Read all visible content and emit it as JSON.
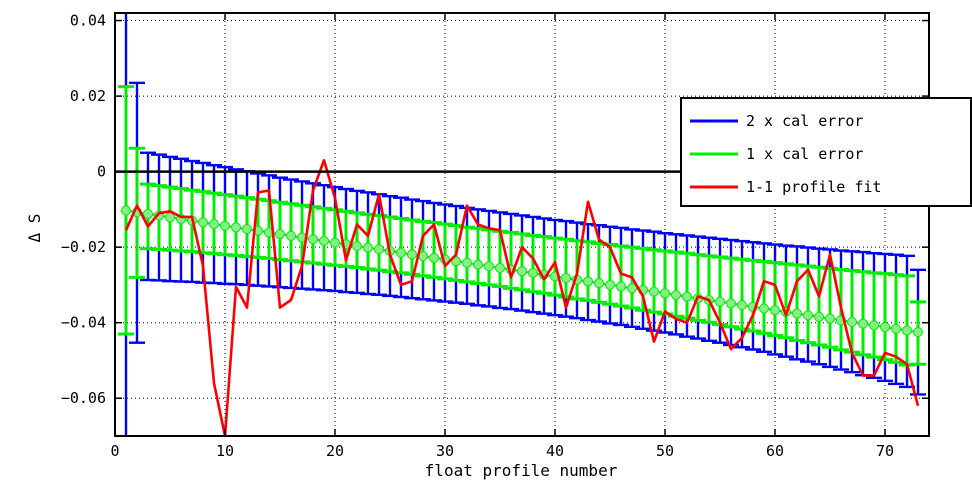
{
  "chart_data": {
    "type": "line",
    "xlabel": "float profile number",
    "ylabel": "Δ S",
    "xlim": [
      0,
      74
    ],
    "ylim": [
      -0.07,
      0.042
    ],
    "x_ticks": [
      0,
      10,
      20,
      30,
      40,
      50,
      60,
      70
    ],
    "y_ticks": [
      {
        "value": 0.04,
        "label": "0.04"
      },
      {
        "value": 0.02,
        "label": "0.02"
      },
      {
        "value": 0,
        "label": "0"
      },
      {
        "value": -0.02,
        "label": "−0.02"
      },
      {
        "value": -0.04,
        "label": "−0.04"
      },
      {
        "value": -0.06,
        "label": "−0.06"
      }
    ],
    "grid": true,
    "reference_line_y": 0,
    "legend_position": "top-right",
    "legend": [
      {
        "label": "2 x cal error",
        "color": "#0000ff"
      },
      {
        "label": "1 x cal error",
        "color": "#00ee00"
      },
      {
        "label": "1-1 profile fit",
        "color": "#ff0000"
      }
    ],
    "colors": {
      "blue": "#0000ff",
      "green": "#00ee00",
      "red": "#ff0000",
      "marker": "#88ee88"
    },
    "error_bars_2x": {
      "name": "2 x cal error",
      "x": [
        1,
        2,
        3,
        4,
        5,
        6,
        7,
        8,
        9,
        10,
        11,
        12,
        13,
        14,
        15,
        16,
        17,
        18,
        19,
        20,
        21,
        22,
        23,
        24,
        25,
        26,
        27,
        28,
        29,
        30,
        31,
        32,
        33,
        34,
        35,
        36,
        37,
        38,
        39,
        40,
        41,
        42,
        43,
        44,
        45,
        46,
        47,
        48,
        49,
        50,
        51,
        52,
        53,
        54,
        55,
        56,
        57,
        58,
        59,
        60,
        61,
        62,
        63,
        64,
        65,
        66,
        67,
        68,
        69,
        70,
        71,
        72,
        73
      ],
      "lower": [
        -0.0744,
        -0.0453,
        -0.0287,
        -0.0288,
        -0.029,
        -0.0291,
        -0.0292,
        -0.0294,
        -0.0295,
        -0.0297,
        -0.0298,
        -0.03,
        -0.0302,
        -0.0304,
        -0.0306,
        -0.0308,
        -0.031,
        -0.0312,
        -0.0314,
        -0.0316,
        -0.0319,
        -0.0321,
        -0.0324,
        -0.0326,
        -0.0329,
        -0.0332,
        -0.0335,
        -0.0338,
        -0.0341,
        -0.0344,
        -0.0347,
        -0.035,
        -0.0354,
        -0.0357,
        -0.0361,
        -0.0364,
        -0.0368,
        -0.0372,
        -0.0376,
        -0.038,
        -0.0384,
        -0.0388,
        -0.0393,
        -0.0397,
        -0.0402,
        -0.0406,
        -0.0411,
        -0.0416,
        -0.0421,
        -0.0426,
        -0.0431,
        -0.0437,
        -0.0442,
        -0.0448,
        -0.0453,
        -0.0459,
        -0.0465,
        -0.0471,
        -0.0477,
        -0.0484,
        -0.049,
        -0.0497,
        -0.0503,
        -0.051,
        -0.0517,
        -0.0524,
        -0.0531,
        -0.0539,
        -0.0546,
        -0.0554,
        -0.0562,
        -0.057,
        -0.059
      ],
      "upper": [
        0.054,
        0.0235,
        0.005,
        0.0045,
        0.0039,
        0.0034,
        0.0028,
        0.0023,
        0.0017,
        0.0012,
        0.0006,
        0.0001,
        -0.0005,
        -0.001,
        -0.0016,
        -0.0021,
        -0.0026,
        -0.0031,
        -0.0036,
        -0.0041,
        -0.0046,
        -0.0051,
        -0.0055,
        -0.006,
        -0.0065,
        -0.0069,
        -0.0074,
        -0.0078,
        -0.0083,
        -0.0087,
        -0.0091,
        -0.0096,
        -0.01,
        -0.0104,
        -0.0108,
        -0.0112,
        -0.0116,
        -0.012,
        -0.0124,
        -0.0128,
        -0.0131,
        -0.0135,
        -0.0139,
        -0.0142,
        -0.0146,
        -0.0149,
        -0.0153,
        -0.0156,
        -0.0159,
        -0.0163,
        -0.0166,
        -0.0169,
        -0.0172,
        -0.0175,
        -0.0178,
        -0.0181,
        -0.0184,
        -0.0187,
        -0.019,
        -0.0193,
        -0.0196,
        -0.0198,
        -0.0201,
        -0.0204,
        -0.0206,
        -0.0209,
        -0.0211,
        -0.0213,
        -0.0216,
        -0.0218,
        -0.022,
        -0.0223,
        -0.026
      ]
    },
    "error_bars_1x": {
      "name": "1 x cal error",
      "x": [
        1,
        2,
        3,
        4,
        5,
        6,
        7,
        8,
        9,
        10,
        11,
        12,
        13,
        14,
        15,
        16,
        17,
        18,
        19,
        20,
        21,
        22,
        23,
        24,
        25,
        26,
        27,
        28,
        29,
        30,
        31,
        32,
        33,
        34,
        35,
        36,
        37,
        38,
        39,
        40,
        41,
        42,
        43,
        44,
        45,
        46,
        47,
        48,
        49,
        50,
        51,
        52,
        53,
        54,
        55,
        56,
        57,
        58,
        59,
        60,
        61,
        62,
        63,
        64,
        65,
        66,
        67,
        68,
        69,
        70,
        71,
        72,
        73
      ],
      "lower": [
        -0.043,
        -0.028,
        -0.0204,
        -0.0206,
        -0.0208,
        -0.021,
        -0.0212,
        -0.0215,
        -0.0217,
        -0.022,
        -0.0222,
        -0.0225,
        -0.0227,
        -0.023,
        -0.0233,
        -0.0236,
        -0.0239,
        -0.0242,
        -0.0245,
        -0.0248,
        -0.0251,
        -0.0254,
        -0.0258,
        -0.0261,
        -0.0265,
        -0.0268,
        -0.0272,
        -0.0276,
        -0.028,
        -0.0284,
        -0.0288,
        -0.0292,
        -0.0296,
        -0.03,
        -0.0304,
        -0.0309,
        -0.0313,
        -0.0318,
        -0.0322,
        -0.0327,
        -0.0332,
        -0.0337,
        -0.0341,
        -0.0346,
        -0.0351,
        -0.0356,
        -0.0361,
        -0.0367,
        -0.0372,
        -0.0377,
        -0.0383,
        -0.0388,
        -0.0394,
        -0.0399,
        -0.0405,
        -0.0411,
        -0.0417,
        -0.0422,
        -0.0428,
        -0.0434,
        -0.044,
        -0.0447,
        -0.0453,
        -0.0459,
        -0.0465,
        -0.0472,
        -0.0478,
        -0.0485,
        -0.0491,
        -0.0498,
        -0.0505,
        -0.0512,
        -0.051
      ],
      "upper": [
        0.0225,
        0.0062,
        -0.0033,
        -0.0037,
        -0.0041,
        -0.0045,
        -0.0049,
        -0.0053,
        -0.0057,
        -0.0061,
        -0.0065,
        -0.0069,
        -0.0073,
        -0.0077,
        -0.0081,
        -0.0085,
        -0.0089,
        -0.0093,
        -0.0097,
        -0.0101,
        -0.0105,
        -0.0109,
        -0.0113,
        -0.0116,
        -0.012,
        -0.0124,
        -0.0128,
        -0.0132,
        -0.0135,
        -0.0139,
        -0.0143,
        -0.0147,
        -0.015,
        -0.0154,
        -0.0158,
        -0.0161,
        -0.0165,
        -0.0169,
        -0.0172,
        -0.0176,
        -0.0179,
        -0.0183,
        -0.0186,
        -0.019,
        -0.0193,
        -0.0197,
        -0.02,
        -0.0203,
        -0.0207,
        -0.021,
        -0.0213,
        -0.0216,
        -0.022,
        -0.0223,
        -0.0226,
        -0.0229,
        -0.0232,
        -0.0235,
        -0.0238,
        -0.0241,
        -0.0244,
        -0.0247,
        -0.025,
        -0.0253,
        -0.0256,
        -0.0259,
        -0.0262,
        -0.0265,
        -0.0268,
        -0.027,
        -0.0273,
        -0.0276,
        -0.0345
      ]
    },
    "center_line": {
      "x": [
        1,
        73
      ],
      "y": [
        -0.0103,
        -0.0425
      ]
    },
    "series": [
      {
        "name": "1-1 profile fit",
        "x": [
          1,
          2,
          3,
          4,
          5,
          6,
          7,
          8,
          9,
          10,
          11,
          12,
          13,
          14,
          15,
          16,
          17,
          18,
          19,
          20,
          21,
          22,
          23,
          24,
          25,
          26,
          27,
          28,
          29,
          30,
          31,
          32,
          33,
          34,
          35,
          36,
          37,
          38,
          39,
          40,
          41,
          42,
          43,
          44,
          45,
          46,
          47,
          48,
          49,
          50,
          51,
          52,
          53,
          54,
          55,
          56,
          57,
          58,
          59,
          60,
          61,
          62,
          63,
          64,
          65,
          66,
          67,
          68,
          69,
          70,
          71,
          72,
          73
        ],
        "values": [
          -0.0155,
          -0.009,
          -0.0145,
          -0.011,
          -0.0105,
          -0.012,
          -0.012,
          -0.025,
          -0.056,
          -0.07,
          -0.0305,
          -0.036,
          -0.0055,
          -0.005,
          -0.036,
          -0.034,
          -0.025,
          -0.005,
          0.003,
          -0.007,
          -0.0235,
          -0.014,
          -0.017,
          -0.006,
          -0.022,
          -0.03,
          -0.029,
          -0.017,
          -0.014,
          -0.025,
          -0.022,
          -0.009,
          -0.014,
          -0.015,
          -0.0155,
          -0.028,
          -0.02,
          -0.023,
          -0.0285,
          -0.024,
          -0.036,
          -0.027,
          -0.008,
          -0.018,
          -0.02,
          -0.027,
          -0.028,
          -0.033,
          -0.045,
          -0.037,
          -0.039,
          -0.04,
          -0.033,
          -0.034,
          -0.04,
          -0.047,
          -0.044,
          -0.038,
          -0.029,
          -0.03,
          -0.038,
          -0.029,
          -0.026,
          -0.033,
          -0.022,
          -0.036,
          -0.048,
          -0.054,
          -0.054,
          -0.048,
          -0.049,
          -0.051,
          -0.062
        ]
      }
    ]
  }
}
